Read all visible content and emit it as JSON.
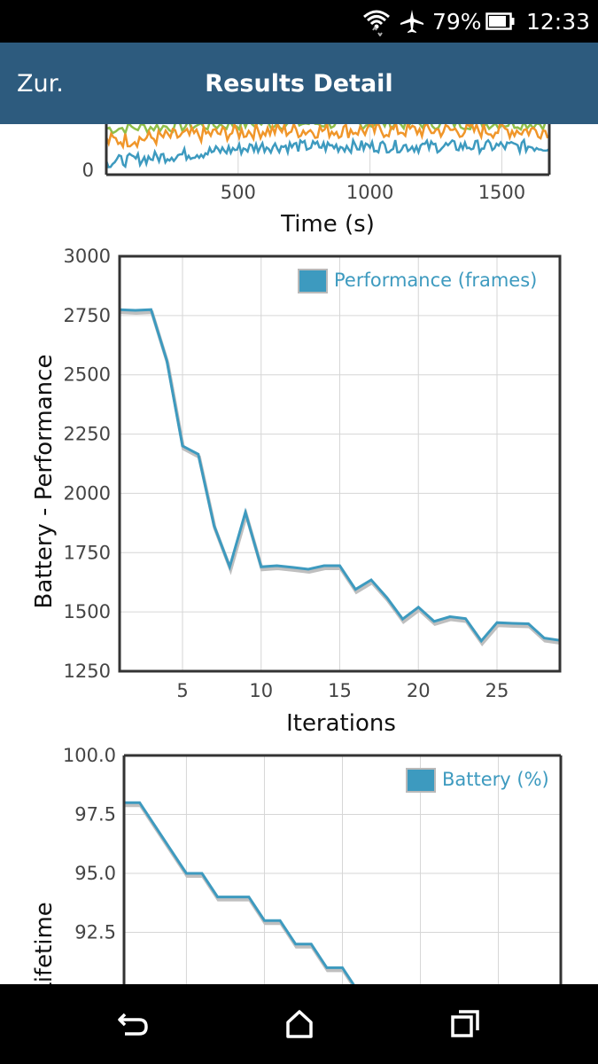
{
  "status_bar": {
    "battery_percent": "79%",
    "time": "12:33",
    "icons": [
      "wifi-icon",
      "airplane-icon",
      "battery-icon"
    ]
  },
  "app_bar": {
    "back_label": "Zur.",
    "title": "Results Detail"
  },
  "colors": {
    "app_bar": "#2d5b7e",
    "series_blue": "#3d9abf",
    "series_orange": "#f0962a",
    "series_green": "#8fbf4a",
    "grid": "#d6d6d6",
    "axis_text": "#444444"
  },
  "chart_data": [
    {
      "type": "line",
      "partially_visible": true,
      "xlabel": "Time (s)",
      "xlim": [
        0,
        1680
      ],
      "x_ticks": [
        "500",
        "1000",
        "1500"
      ],
      "y_visible_tick": "0",
      "series": [
        {
          "color": "#f0962a"
        },
        {
          "color": "#3d9abf"
        },
        {
          "color": "#8fbf4a"
        }
      ]
    },
    {
      "type": "line",
      "xlabel": "Iterations",
      "ylabel": "Battery - Performance",
      "ylim": [
        1250,
        3000
      ],
      "xlim": [
        1,
        29
      ],
      "y_ticks": [
        "3000",
        "2750",
        "2500",
        "2250",
        "2000",
        "1750",
        "1500",
        "1250"
      ],
      "x_ticks": [
        "5",
        "10",
        "15",
        "20",
        "25"
      ],
      "legend": "top-right",
      "grid": true,
      "series": [
        {
          "name": "Performance (frames)",
          "color": "#3d9abf",
          "x": [
            1,
            2,
            3,
            4,
            5,
            6,
            7,
            8,
            9,
            10,
            11,
            12,
            13,
            14,
            15,
            16,
            17,
            18,
            19,
            20,
            21,
            22,
            23,
            24,
            25,
            26,
            27,
            28,
            29
          ],
          "values": [
            2775,
            2772,
            2775,
            2560,
            2200,
            2165,
            1865,
            1690,
            1920,
            1690,
            1695,
            1688,
            1680,
            1695,
            1695,
            1595,
            1635,
            1560,
            1470,
            1520,
            1460,
            1480,
            1472,
            1378,
            1455,
            1452,
            1450,
            1390,
            1380
          ]
        }
      ]
    },
    {
      "type": "line",
      "partially_visible": true,
      "ylabel": "Lifetime",
      "ylim": [
        87.5,
        100.0
      ],
      "xlim": [
        1,
        29
      ],
      "y_ticks": [
        "100.0",
        "97.5",
        "95.0",
        "92.5"
      ],
      "legend": "top-right",
      "grid": true,
      "series": [
        {
          "name": "Battery (%)",
          "color": "#3d9abf",
          "x": [
            1,
            2,
            3,
            4,
            5,
            6,
            7,
            8,
            9,
            10,
            11,
            12,
            13,
            14,
            15,
            16
          ],
          "values": [
            98,
            98,
            97,
            96,
            95,
            95,
            94,
            94,
            94,
            93,
            93,
            92,
            92,
            91,
            91,
            90
          ]
        }
      ]
    }
  ],
  "nav_bar": {
    "buttons": [
      "back-icon",
      "home-icon",
      "recents-icon"
    ]
  }
}
